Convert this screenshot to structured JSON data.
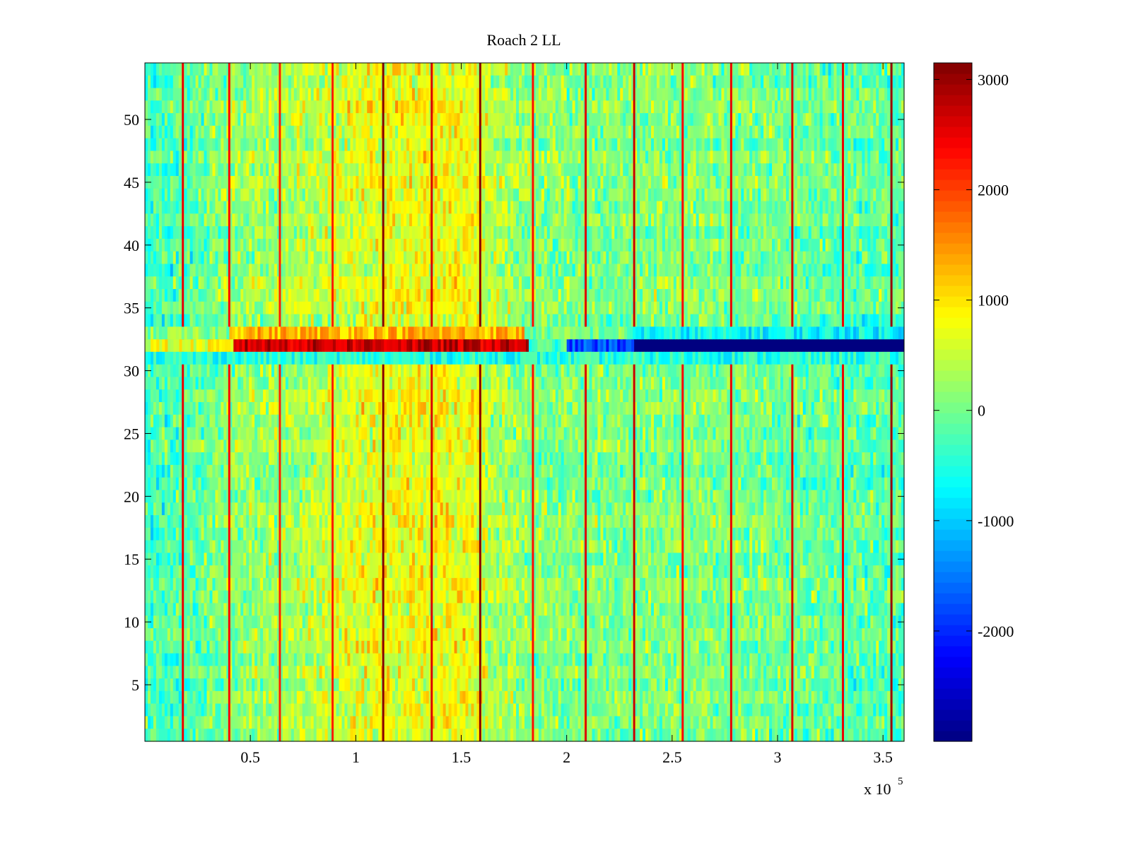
{
  "chart_data": {
    "type": "heatmap",
    "title": "Roach 2 LL",
    "xlabel": "",
    "ylabel": "",
    "x_multiplier_label": {
      "base": "x 10",
      "exponent": "5"
    },
    "xlim": [
      0,
      3.6
    ],
    "ylim": [
      0.5,
      54.5
    ],
    "rows": 54,
    "x_ticks": [
      {
        "value": 0.5,
        "label": "0.5"
      },
      {
        "value": 1.0,
        "label": "1"
      },
      {
        "value": 1.5,
        "label": "1.5"
      },
      {
        "value": 2.0,
        "label": "2"
      },
      {
        "value": 2.5,
        "label": "2.5"
      },
      {
        "value": 3.0,
        "label": "3"
      },
      {
        "value": 3.5,
        "label": "3.5"
      }
    ],
    "y_ticks": [
      {
        "value": 5,
        "label": "5"
      },
      {
        "value": 10,
        "label": "10"
      },
      {
        "value": 15,
        "label": "15"
      },
      {
        "value": 20,
        "label": "20"
      },
      {
        "value": 25,
        "label": "25"
      },
      {
        "value": 30,
        "label": "30"
      },
      {
        "value": 35,
        "label": "35"
      },
      {
        "value": 40,
        "label": "40"
      },
      {
        "value": 45,
        "label": "45"
      },
      {
        "value": 50,
        "label": "50"
      }
    ],
    "colorbar": {
      "colormap": "jet",
      "clim": [
        -3000,
        3150
      ],
      "ticks": [
        {
          "value": 3000,
          "label": "3000"
        },
        {
          "value": 2000,
          "label": "2000"
        },
        {
          "value": 1000,
          "label": "1000"
        },
        {
          "value": 0,
          "label": "0"
        },
        {
          "value": -1000,
          "label": "-1000"
        },
        {
          "value": -2000,
          "label": "-2000"
        }
      ]
    },
    "column_profile": [
      {
        "x": 0.0,
        "value": -300
      },
      {
        "x": 0.2,
        "value": -200
      },
      {
        "x": 0.4,
        "value": 150
      },
      {
        "x": 0.7,
        "value": 300
      },
      {
        "x": 0.95,
        "value": 600
      },
      {
        "x": 1.15,
        "value": 750
      },
      {
        "x": 1.35,
        "value": 750
      },
      {
        "x": 1.55,
        "value": 800
      },
      {
        "x": 1.62,
        "value": 450
      },
      {
        "x": 1.85,
        "value": 100
      },
      {
        "x": 2.2,
        "value": 50
      },
      {
        "x": 2.6,
        "value": 100
      },
      {
        "x": 3.0,
        "value": 0
      },
      {
        "x": 3.4,
        "value": -150
      },
      {
        "x": 3.6,
        "value": -200
      }
    ],
    "vertical_lines": [
      {
        "x": 0.18,
        "value": 2500
      },
      {
        "x": 0.4,
        "value": 2400
      },
      {
        "x": 0.64,
        "value": 2200
      },
      {
        "x": 0.89,
        "value": 2200
      },
      {
        "x": 1.13,
        "value": 3100
      },
      {
        "x": 1.36,
        "value": 2600
      },
      {
        "x": 1.59,
        "value": 3100
      },
      {
        "x": 1.84,
        "value": 2300
      },
      {
        "x": 2.09,
        "value": 2600
      },
      {
        "x": 2.32,
        "value": 2700
      },
      {
        "x": 2.55,
        "value": 2400
      },
      {
        "x": 2.78,
        "value": 2500
      },
      {
        "x": 3.07,
        "value": 2600
      },
      {
        "x": 3.31,
        "value": 2500
      },
      {
        "x": 3.54,
        "value": 3000
      }
    ],
    "anomalous_rows": [
      {
        "row": 32,
        "segments": [
          {
            "x_start": 0.0,
            "x_end": 0.42,
            "value": 700
          },
          {
            "x_start": 0.42,
            "x_end": 1.82,
            "value": 2700
          },
          {
            "x_start": 1.82,
            "x_end": 2.0,
            "value": -300
          },
          {
            "x_start": 2.0,
            "x_end": 2.32,
            "value": -1800
          },
          {
            "x_start": 2.32,
            "x_end": 3.6,
            "value": -3000
          }
        ]
      },
      {
        "row": 33,
        "segments": [
          {
            "x_start": 0.0,
            "x_end": 0.4,
            "value": 100
          },
          {
            "x_start": 0.4,
            "x_end": 1.8,
            "value": 1300
          },
          {
            "x_start": 1.8,
            "x_end": 2.3,
            "value": 0
          },
          {
            "x_start": 2.3,
            "x_end": 3.6,
            "value": -700
          }
        ]
      },
      {
        "row": 31,
        "segments": [
          {
            "x_start": 0.0,
            "x_end": 3.6,
            "value": -500
          }
        ]
      }
    ]
  }
}
